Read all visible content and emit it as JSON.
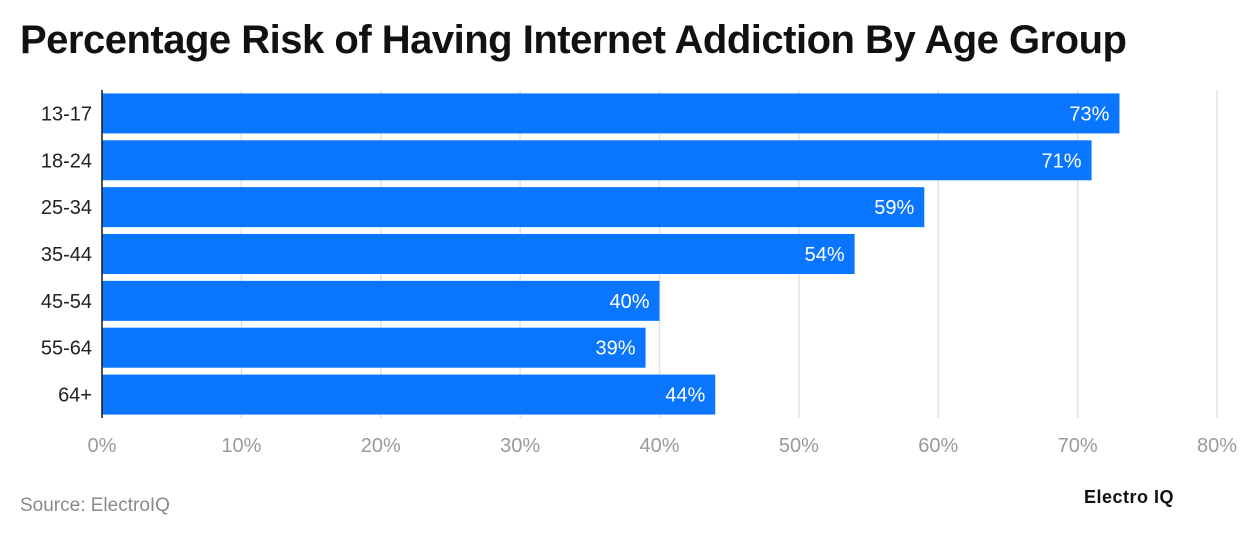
{
  "title": "Percentage Risk of Having Internet Addiction By Age Group",
  "source": "Source: ElectroIQ",
  "logo": "Electro IQ",
  "colors": {
    "bar": "#0a76ff",
    "grid": "#e3e3e3",
    "tick_label": "#9a9a9a",
    "category_label": "#222222",
    "value_label": "#ffffff"
  },
  "chart_data": {
    "type": "bar",
    "orientation": "horizontal",
    "categories": [
      "13-17",
      "18-24",
      "25-34",
      "35-44",
      "45-54",
      "55-64",
      "64+"
    ],
    "values": [
      73,
      71,
      59,
      54,
      40,
      39,
      44
    ],
    "data_labels": [
      "73%",
      "71%",
      "59%",
      "54%",
      "40%",
      "39%",
      "44%"
    ],
    "xlim": [
      0,
      80
    ],
    "x_ticks": [
      0,
      10,
      20,
      30,
      40,
      50,
      60,
      70,
      80
    ],
    "x_tick_labels": [
      "0%",
      "10%",
      "20%",
      "30%",
      "40%",
      "50%",
      "60%",
      "70%",
      "80%"
    ],
    "grid": true,
    "title": "Percentage Risk of Having Internet Addiction By Age Group"
  }
}
